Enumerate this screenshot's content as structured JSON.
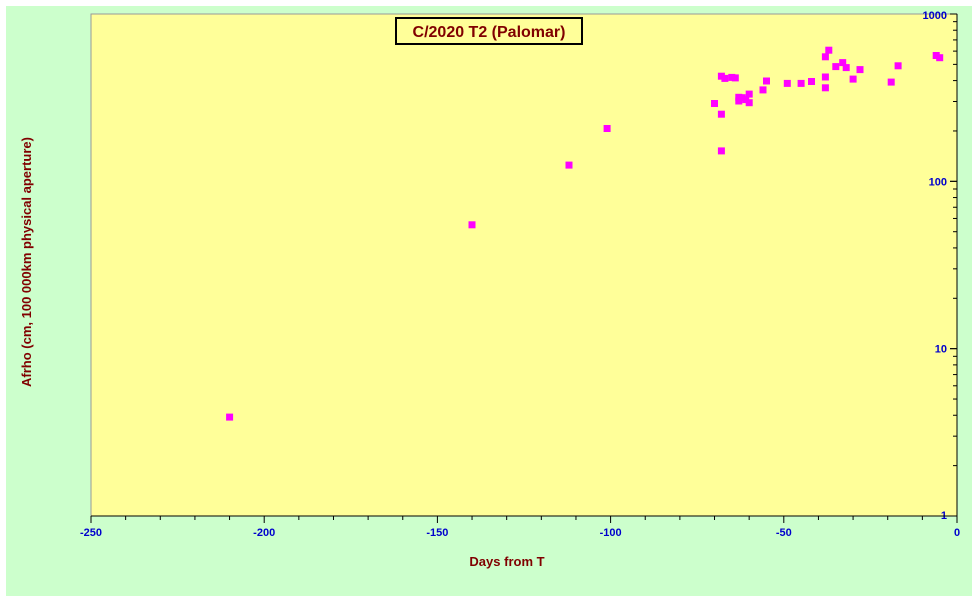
{
  "chart_data": {
    "type": "scatter",
    "title": "C/2020 T2 (Palomar)",
    "xlabel": "Days from  T",
    "ylabel": "Afrho (cm, 100 000km physical aperture)",
    "xlim": [
      -250,
      0
    ],
    "ylim": [
      1,
      1000
    ],
    "yscale": "log",
    "xticks": [
      -250,
      -200,
      -150,
      -100,
      -50,
      0
    ],
    "xtick_labels": [
      "-250",
      "-200",
      "-150",
      "-100",
      "-50",
      "0"
    ],
    "yticks": [
      1,
      10,
      100,
      1000
    ],
    "ytick_labels": [
      "1",
      "10",
      "100",
      "1000"
    ],
    "grid": false,
    "legend": "none",
    "colors": {
      "marker": "#ff00ff",
      "plot_bg": "#ffff99",
      "frame_bg": "#ccffcc",
      "tick_text": "#0000cc",
      "label_text": "#800000"
    },
    "points": [
      [
        -210,
        3.9
      ],
      [
        -140,
        55
      ],
      [
        -112,
        125
      ],
      [
        -101,
        207
      ],
      [
        -70,
        292
      ],
      [
        -68,
        252
      ],
      [
        -68,
        152
      ],
      [
        -68,
        425
      ],
      [
        -67,
        412
      ],
      [
        -65,
        418
      ],
      [
        -64,
        415
      ],
      [
        -63,
        318
      ],
      [
        -63,
        302
      ],
      [
        -62,
        316
      ],
      [
        -61,
        308
      ],
      [
        -60,
        295
      ],
      [
        -60,
        332
      ],
      [
        -56,
        352
      ],
      [
        -55,
        398
      ],
      [
        -49,
        385
      ],
      [
        -45,
        385
      ],
      [
        -42,
        395
      ],
      [
        -38,
        420
      ],
      [
        -38,
        362
      ],
      [
        -38,
        555
      ],
      [
        -37,
        608
      ],
      [
        -35,
        485
      ],
      [
        -33,
        512
      ],
      [
        -32,
        478
      ],
      [
        -30,
        408
      ],
      [
        -28,
        465
      ],
      [
        -19,
        392
      ],
      [
        -17,
        490
      ],
      [
        -6,
        565
      ],
      [
        -5,
        548
      ]
    ]
  }
}
